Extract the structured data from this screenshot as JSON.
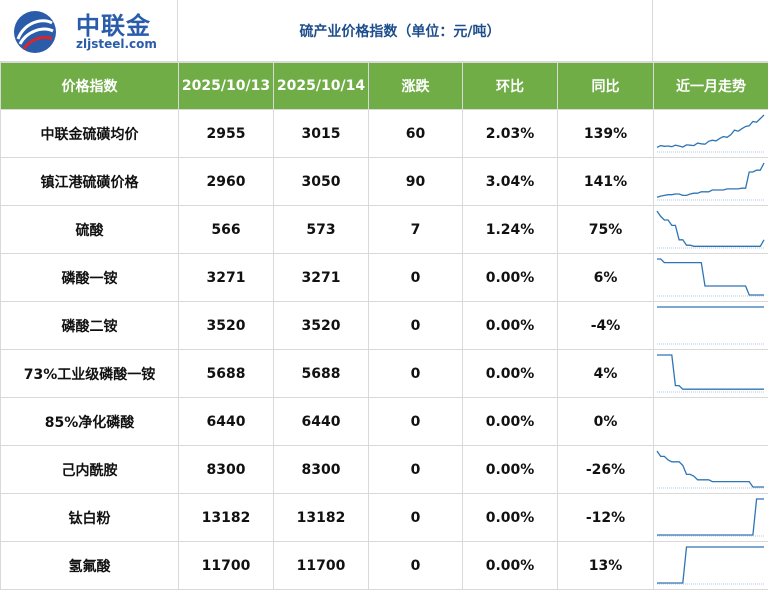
{
  "brand": {
    "name_cn": "中联金",
    "site": "zljsteel.com"
  },
  "title": "硫产业价格指数（单位：元/吨）",
  "colors": {
    "header_green": "#70ad47",
    "title_blue": "#1f4e8c",
    "brand_blue": "#2a5caa",
    "sparkline": "#2e75b6"
  },
  "columns": [
    "价格指数",
    "2025/10/13",
    "2025/10/14",
    "涨跌",
    "环比",
    "同比",
    "近一月走势"
  ],
  "rows": [
    {
      "name": "中联金硫磺均价",
      "d1": "2955",
      "d2": "3015",
      "change": "60",
      "mom": "2.03%",
      "yoy": "139%",
      "trend": [
        0.1,
        0.15,
        0.13,
        0.14,
        0.12,
        0.16,
        0.14,
        0.11,
        0.17,
        0.16,
        0.15,
        0.22,
        0.2,
        0.19,
        0.27,
        0.3,
        0.28,
        0.35,
        0.4,
        0.38,
        0.45,
        0.58,
        0.55,
        0.62,
        0.68,
        0.7,
        0.82,
        0.8,
        0.9,
        1.0
      ]
    },
    {
      "name": "镇江港硫磺价格",
      "d1": "2960",
      "d2": "3050",
      "change": "90",
      "mom": "3.04%",
      "yoy": "141%",
      "trend": [
        0.05,
        0.08,
        0.1,
        0.12,
        0.12,
        0.14,
        0.14,
        0.1,
        0.1,
        0.14,
        0.16,
        0.16,
        0.2,
        0.2,
        0.2,
        0.25,
        0.25,
        0.25,
        0.25,
        0.28,
        0.28,
        0.28,
        0.28,
        0.3,
        0.3,
        0.75,
        0.75,
        0.8,
        0.8,
        1.0
      ]
    },
    {
      "name": "硫酸",
      "d1": "566",
      "d2": "573",
      "change": "7",
      "mom": "1.24%",
      "yoy": "75%",
      "trend": [
        1.0,
        0.85,
        0.75,
        0.75,
        0.6,
        0.6,
        0.2,
        0.2,
        0.05,
        0.05,
        0.02,
        0.02,
        0.02,
        0.02,
        0.02,
        0.02,
        0.02,
        0.02,
        0.02,
        0.02,
        0.02,
        0.02,
        0.02,
        0.02,
        0.02,
        0.02,
        0.02,
        0.02,
        0.02,
        0.2
      ]
    },
    {
      "name": "磷酸一铵",
      "d1": "3271",
      "d2": "3271",
      "change": "0",
      "mom": "0.00%",
      "yoy": "6%",
      "trend": [
        1.0,
        1.0,
        0.9,
        0.9,
        0.9,
        0.9,
        0.9,
        0.9,
        0.9,
        0.9,
        0.9,
        0.9,
        0.9,
        0.25,
        0.25,
        0.25,
        0.25,
        0.25,
        0.25,
        0.25,
        0.25,
        0.25,
        0.25,
        0.25,
        0.25,
        0.0,
        0.0,
        0.0,
        0.0,
        0.0
      ]
    },
    {
      "name": "磷酸二铵",
      "d1": "3520",
      "d2": "3520",
      "change": "0",
      "mom": "0.00%",
      "yoy": "-4%",
      "trend": [
        1.0,
        1.0,
        1.0,
        1.0,
        1.0,
        1.0,
        1.0,
        1.0,
        1.0,
        1.0,
        1.0,
        1.0,
        1.0,
        1.0,
        1.0,
        1.0,
        1.0,
        1.0,
        1.0,
        1.0,
        1.0,
        1.0,
        1.0,
        1.0,
        1.0,
        1.0,
        1.0,
        1.0,
        1.0,
        1.0
      ]
    },
    {
      "name": "73%工业级磷酸一铵",
      "d1": "5688",
      "d2": "5688",
      "change": "0",
      "mom": "0.00%",
      "yoy": "4%",
      "trend": [
        1.0,
        1.0,
        1.0,
        1.0,
        1.0,
        0.15,
        0.15,
        0.05,
        0.05,
        0.05,
        0.05,
        0.05,
        0.05,
        0.05,
        0.05,
        0.05,
        0.05,
        0.05,
        0.05,
        0.05,
        0.05,
        0.05,
        0.05,
        0.05,
        0.05,
        0.05,
        0.05,
        0.05,
        0.05,
        0.05
      ]
    },
    {
      "name": "85%净化磷酸",
      "d1": "6440",
      "d2": "6440",
      "change": "0",
      "mom": "0.00%",
      "yoy": "0%",
      "trend": []
    },
    {
      "name": "己内酰胺",
      "d1": "8300",
      "d2": "8300",
      "change": "0",
      "mom": "0.00%",
      "yoy": "-26%",
      "trend": [
        1.0,
        0.85,
        0.85,
        0.75,
        0.7,
        0.7,
        0.7,
        0.6,
        0.35,
        0.35,
        0.3,
        0.2,
        0.2,
        0.2,
        0.2,
        0.15,
        0.15,
        0.15,
        0.15,
        0.15,
        0.15,
        0.15,
        0.15,
        0.15,
        0.15,
        0.15,
        0.0,
        0.0,
        0.0,
        0.0
      ]
    },
    {
      "name": "钛白粉",
      "d1": "13182",
      "d2": "13182",
      "change": "0",
      "mom": "0.00%",
      "yoy": "-12%",
      "trend": [
        0.0,
        0.0,
        0.0,
        0.0,
        0.0,
        0.0,
        0.0,
        0.0,
        0.0,
        0.0,
        0.0,
        0.0,
        0.0,
        0.0,
        0.0,
        0.0,
        0.0,
        0.0,
        0.0,
        0.0,
        0.0,
        0.0,
        0.0,
        0.0,
        0.0,
        0.0,
        0.0,
        1.0,
        1.0,
        1.0
      ]
    },
    {
      "name": "氢氟酸",
      "d1": "11700",
      "d2": "11700",
      "change": "0",
      "mom": "0.00%",
      "yoy": "13%",
      "trend": [
        0.0,
        0.0,
        0.0,
        0.0,
        0.0,
        0.0,
        0.0,
        0.0,
        1.0,
        1.0,
        1.0,
        1.0,
        1.0,
        1.0,
        1.0,
        1.0,
        1.0,
        1.0,
        1.0,
        1.0,
        1.0,
        1.0,
        1.0,
        1.0,
        1.0,
        1.0,
        1.0,
        1.0,
        1.0,
        1.0
      ]
    }
  ]
}
